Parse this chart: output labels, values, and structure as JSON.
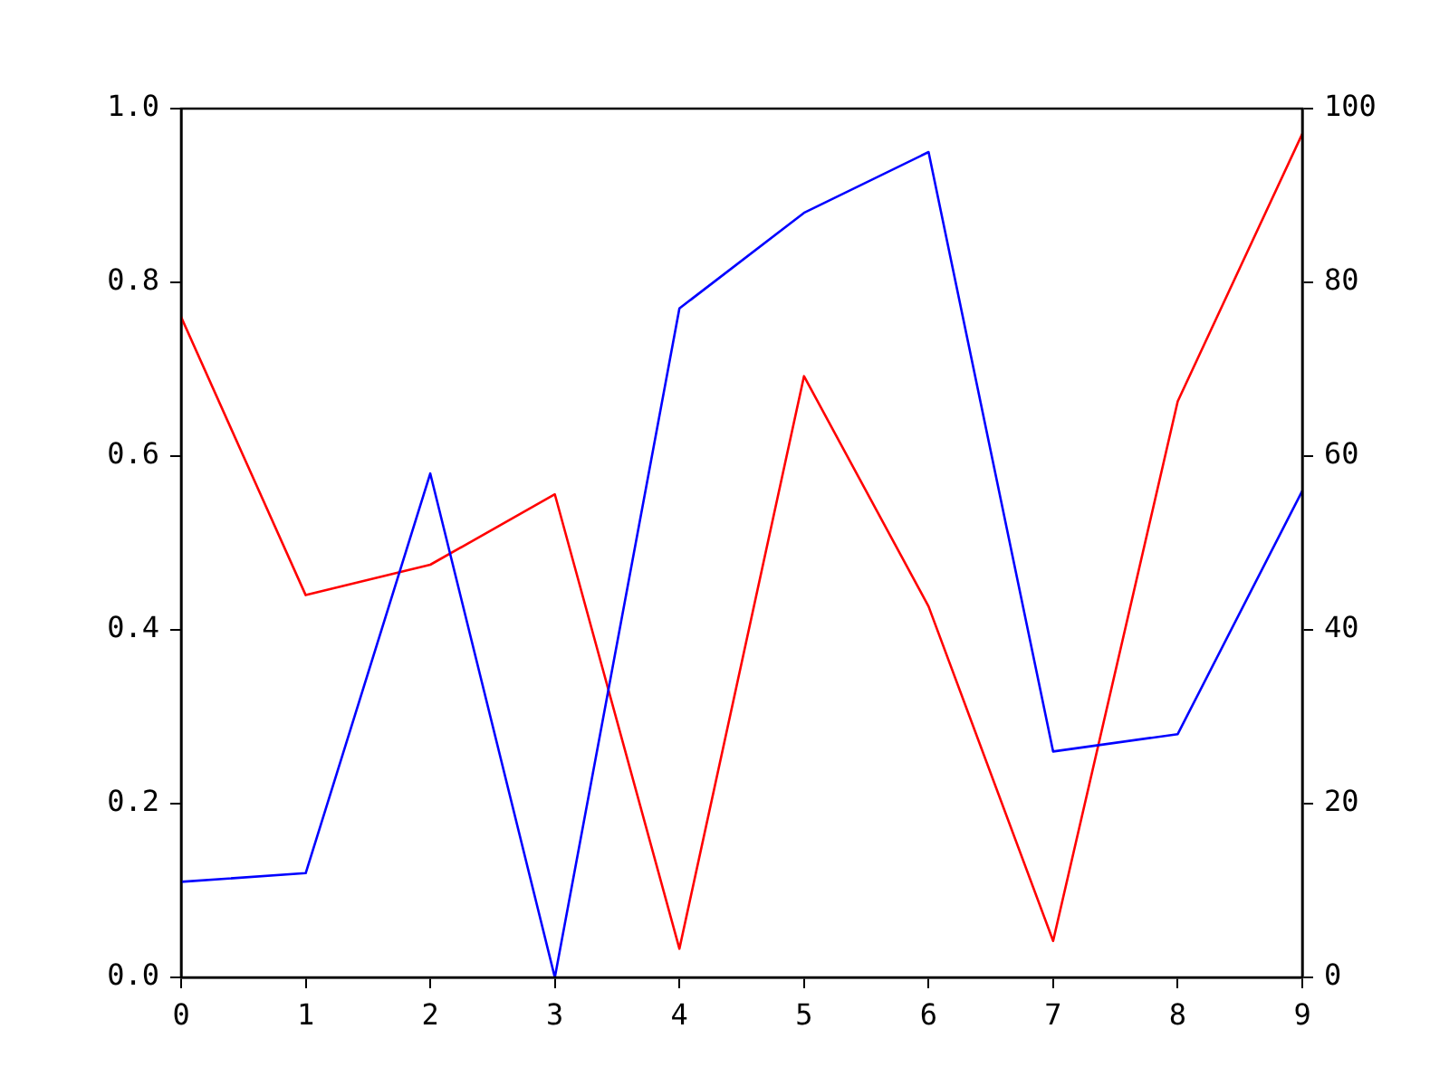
{
  "chart_data": {
    "type": "line",
    "x": [
      0,
      1,
      2,
      3,
      4,
      5,
      6,
      7,
      8,
      9
    ],
    "series": [
      {
        "color": "#0000ff",
        "values": [
          0.11,
          0.12,
          0.58,
          0.0,
          0.77,
          0.88,
          0.95,
          0.26,
          0.28,
          0.56
        ]
      },
      {
        "color": "#ff0000",
        "axis": "y2",
        "values": [
          76,
          44,
          47.5,
          55.6,
          3.3,
          69.2,
          42.7,
          4.2,
          66.3,
          97.1
        ]
      }
    ],
    "xlim": [
      0,
      9
    ],
    "xticks": [
      0,
      1,
      2,
      3,
      4,
      5,
      6,
      7,
      8,
      9
    ],
    "ylim": [
      0,
      1
    ],
    "yticks": [
      {
        "value": 0,
        "label": "0.0"
      },
      {
        "value": 0.2,
        "label": "0.2"
      },
      {
        "value": 0.4,
        "label": "0.4"
      },
      {
        "value": 0.6,
        "label": "0.6"
      },
      {
        "value": 0.8,
        "label": "0.8"
      },
      {
        "value": 1,
        "label": "1.0"
      }
    ],
    "y2lim": [
      0,
      100
    ],
    "y2ticks": [
      0,
      20,
      40,
      60,
      80,
      100
    ],
    "grid": false,
    "legend": false,
    "marker": "none",
    "line_style": "solid"
  }
}
